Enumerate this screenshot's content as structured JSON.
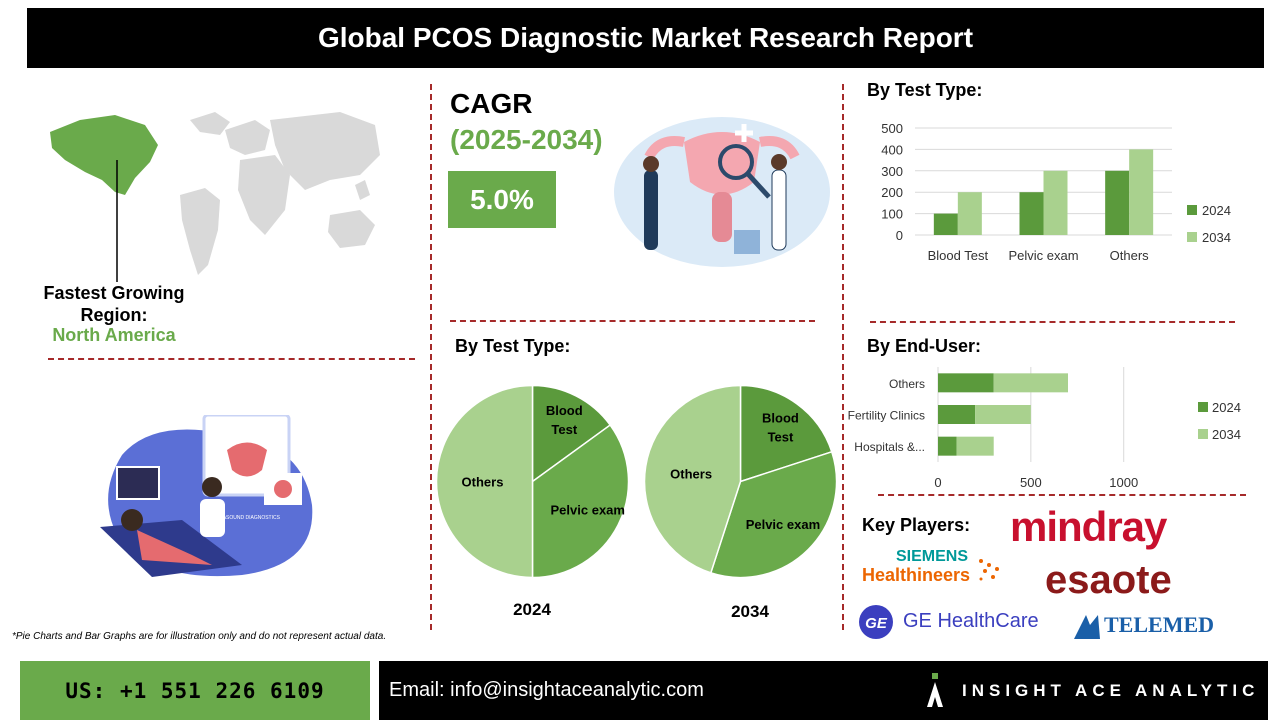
{
  "header": {
    "title": "Global PCOS Diagnostic Market Research Report"
  },
  "region": {
    "label": "Fastest Growing Region:",
    "value": "North America"
  },
  "cagr": {
    "label": "CAGR",
    "period": "(2025-2034)",
    "value": "5.0%"
  },
  "bar_section_title": "By Test Type:",
  "pie_section_title": "By Test Type:",
  "enduser_section_title": "By End-User:",
  "key_players_title": "Key Players:",
  "players": [
    "mindray",
    "SIEMENS",
    "Healthineers",
    "esaote",
    "GE HealthCare",
    "TELEMED"
  ],
  "disclaimer": "*Pie Charts and Bar Graphs are for illustration only and do not represent actual data.",
  "footer": {
    "phone": "US: +1 551 226 6109",
    "email": "Email: info@insightaceanalytic.com",
    "brand": "INSIGHT ACE ANALYTIC"
  },
  "illustration": {
    "screen_text": "ULTRASOUND DIAGNOSTICS"
  },
  "colors": {
    "dark_green": "#5b9a3c",
    "mid_green": "#6aaa4b",
    "light_green": "#a9d18e",
    "dashed": "#a52a2a"
  },
  "chart_data": [
    {
      "type": "bar",
      "title": "By Test Type:",
      "categories": [
        "Blood Test",
        "Pelvic exam",
        "Others"
      ],
      "series": [
        {
          "name": "2024",
          "values": [
            100,
            200,
            300
          ]
        },
        {
          "name": "2034",
          "values": [
            200,
            300,
            400
          ]
        }
      ],
      "ylim": [
        0,
        500
      ],
      "yticks": [
        "0",
        "100",
        "200",
        "300",
        "400",
        "500"
      ],
      "grid": true,
      "legend": "right"
    },
    {
      "type": "pie",
      "title": "2024",
      "labels": [
        "Blood Test",
        "Pelvic exam",
        "Others"
      ],
      "values": [
        15,
        35,
        50
      ]
    },
    {
      "type": "pie",
      "title": "2034",
      "labels": [
        "Blood Test",
        "Pelvic exam",
        "Others"
      ],
      "values": [
        20,
        35,
        45
      ]
    },
    {
      "type": "bar",
      "orientation": "horizontal",
      "title": "By End-User:",
      "categories": [
        "Hospitals &...",
        "Fertility Clinics",
        "Others"
      ],
      "series": [
        {
          "name": "2024",
          "values": [
            100,
            200,
            300
          ]
        },
        {
          "name": "2034",
          "values": [
            200,
            300,
            400
          ]
        }
      ],
      "xlim": [
        0,
        1400
      ],
      "xticks": [
        "0",
        "500",
        "1000"
      ],
      "grid": true,
      "legend": "right"
    }
  ]
}
